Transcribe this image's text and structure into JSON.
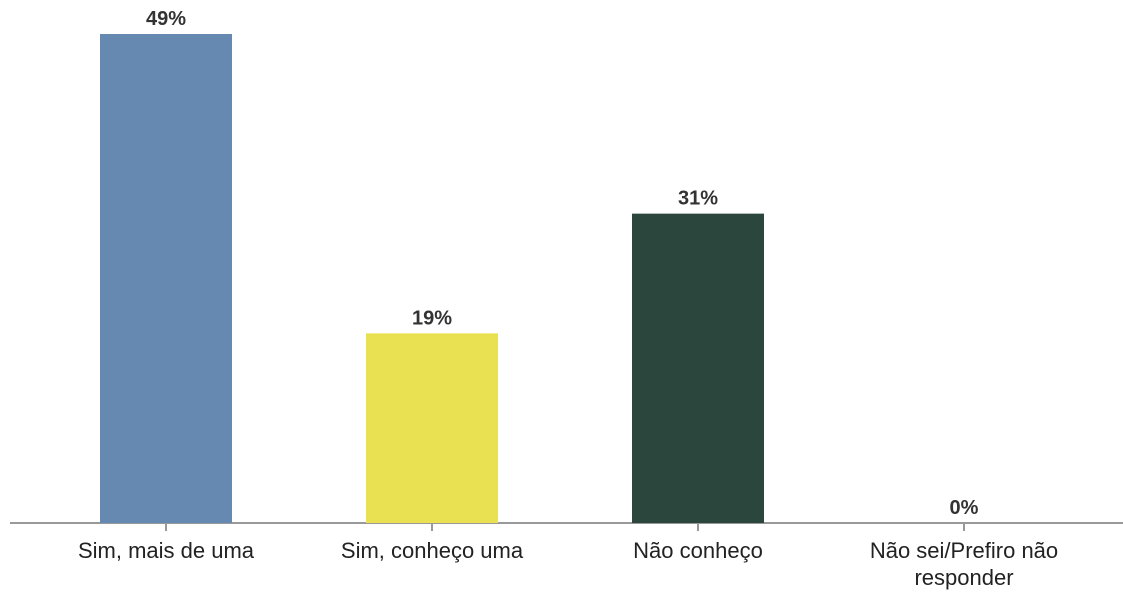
{
  "chart_data": {
    "type": "bar",
    "categories": [
      "Sim, mais de uma",
      "Sim, conheço uma",
      "Não conheço",
      "Não sei/Prefiro não responder"
    ],
    "values": [
      49,
      19,
      31,
      0
    ],
    "value_labels": [
      "49%",
      "19%",
      "31%",
      "0%"
    ],
    "colors": [
      "#6689b1",
      "#e9e052",
      "#2b473d",
      "#999999"
    ]
  }
}
